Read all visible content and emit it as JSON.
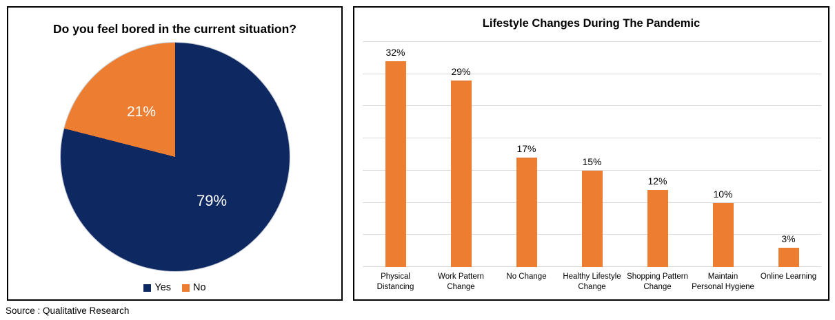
{
  "page": {
    "source_note": "Source : Qualitative Research"
  },
  "chart_data": [
    {
      "type": "pie",
      "title": "Do you feel bored in the current situation?",
      "labels": [
        "Yes",
        "No"
      ],
      "values": [
        79,
        21
      ],
      "data_labels": [
        "79%",
        "21%"
      ],
      "colors": [
        "#0E2862",
        "#ED7D31"
      ],
      "label_text_color": "#FFFFFF",
      "legend_position": "bottom",
      "start_angle": "top-clockwise"
    },
    {
      "type": "bar",
      "title": "Lifestyle Changes During The Pandemic",
      "categories": [
        "Physical Distancing",
        "Work Pattern Change",
        "No Change",
        "Healthy Lifestyle Change",
        "Shopping Pattern Change",
        "Maintain Personal Hygiene",
        "Online Learning"
      ],
      "category_lines": [
        [
          "Physical",
          "Distancing"
        ],
        [
          "Work Pattern",
          "Change"
        ],
        [
          "No Change"
        ],
        [
          "Healthy Lifestyle",
          "Change"
        ],
        [
          "Shopping Pattern",
          "Change"
        ],
        [
          "Maintain",
          "Personal Hygiene"
        ],
        [
          "Online Learning"
        ]
      ],
      "values": [
        32,
        29,
        17,
        15,
        12,
        10,
        3
      ],
      "data_labels": [
        "32%",
        "29%",
        "17%",
        "15%",
        "12%",
        "10%",
        "3%"
      ],
      "bar_color": "#ED7D31",
      "xlabel": "",
      "ylabel": "",
      "ylim": [
        0,
        35
      ],
      "gridline_interval": 5,
      "grid": true,
      "gridline_color": "#D9D9D9",
      "y_axis_labels_visible": false,
      "legend_position": "none"
    }
  ]
}
